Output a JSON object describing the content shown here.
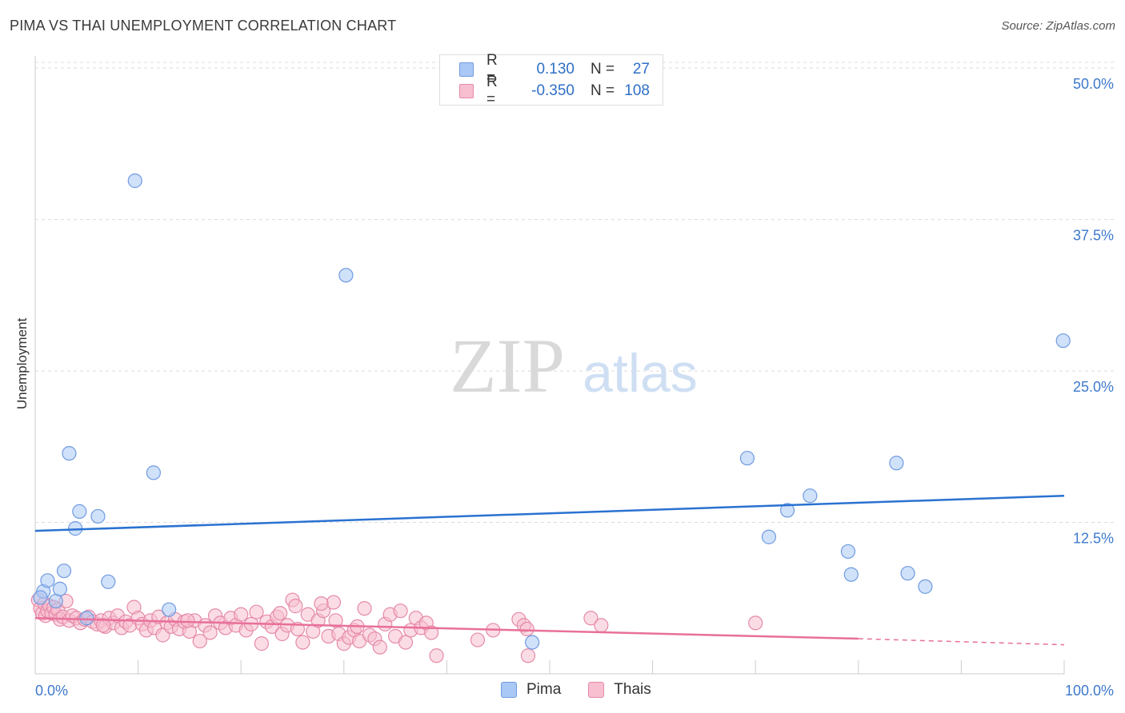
{
  "title": "PIMA VS THAI UNEMPLOYMENT CORRELATION CHART",
  "source": "Source: ZipAtlas.com",
  "watermark": {
    "zip": "ZIP",
    "atlas": "atlas"
  },
  "legend": {
    "rows": [
      {
        "r_label": "R =",
        "r_value": "0.130",
        "n_label": "N =",
        "n_value": "27",
        "color": "#aac8f5",
        "border": "#6f9be0"
      },
      {
        "r_label": "R =",
        "r_value": "-0.350",
        "n_label": "N =",
        "n_value": "108",
        "color": "#f7bfd0",
        "border": "#e58aa8"
      }
    ]
  },
  "bottom_legend": [
    {
      "name": "Pima",
      "color": "#aac8f5",
      "border": "#6f9be0"
    },
    {
      "name": "Thais",
      "color": "#f7bfd0",
      "border": "#e58aa8"
    }
  ],
  "chart_data": {
    "type": "scatter",
    "xlabel": "",
    "ylabel": "Unemployment",
    "xlim": [
      0,
      100
    ],
    "ylim": [
      0,
      51
    ],
    "x_tick_labels": [
      "0.0%",
      "100.0%"
    ],
    "y_ticks": [
      12.5,
      25.0,
      37.5,
      50.0
    ],
    "y_tick_labels": [
      "12.5%",
      "25.0%",
      "37.5%",
      "50.0%"
    ],
    "grid": true,
    "series": [
      {
        "name": "Pima",
        "color": "#aac8f5",
        "stroke": "#6f9be0",
        "line_color": "#2a72d1",
        "trend": {
          "x": [
            0,
            100
          ],
          "y": [
            11.8,
            14.7
          ]
        },
        "points": [
          {
            "x": 0.8,
            "y": 6.8
          },
          {
            "x": 1.2,
            "y": 7.7
          },
          {
            "x": 2.0,
            "y": 6.0
          },
          {
            "x": 2.4,
            "y": 7.0
          },
          {
            "x": 2.8,
            "y": 8.5
          },
          {
            "x": 3.3,
            "y": 18.2
          },
          {
            "x": 3.9,
            "y": 12.0
          },
          {
            "x": 4.3,
            "y": 13.4
          },
          {
            "x": 6.1,
            "y": 13.0
          },
          {
            "x": 7.1,
            "y": 7.6
          },
          {
            "x": 9.7,
            "y": 40.7
          },
          {
            "x": 11.5,
            "y": 16.6
          },
          {
            "x": 13.0,
            "y": 5.3
          },
          {
            "x": 30.2,
            "y": 32.9
          },
          {
            "x": 48.3,
            "y": 2.6
          },
          {
            "x": 69.2,
            "y": 17.8
          },
          {
            "x": 71.3,
            "y": 11.3
          },
          {
            "x": 73.1,
            "y": 13.5
          },
          {
            "x": 75.3,
            "y": 14.7
          },
          {
            "x": 79.0,
            "y": 10.1
          },
          {
            "x": 79.3,
            "y": 8.2
          },
          {
            "x": 83.7,
            "y": 17.4
          },
          {
            "x": 84.8,
            "y": 8.3
          },
          {
            "x": 86.5,
            "y": 7.2
          },
          {
            "x": 99.9,
            "y": 27.5
          },
          {
            "x": 0.5,
            "y": 6.3
          },
          {
            "x": 5.0,
            "y": 4.6
          }
        ]
      },
      {
        "name": "Thais",
        "color": "#f7bfd0",
        "stroke": "#e58aa8",
        "line_color": "#e8709a",
        "trend": {
          "x": [
            0,
            80,
            100
          ],
          "y": [
            4.6,
            2.9,
            2.4
          ]
        },
        "points": [
          {
            "x": 0.3,
            "y": 6.1
          },
          {
            "x": 0.5,
            "y": 5.4
          },
          {
            "x": 0.7,
            "y": 5.0
          },
          {
            "x": 0.9,
            "y": 5.8
          },
          {
            "x": 1.0,
            "y": 4.8
          },
          {
            "x": 1.2,
            "y": 5.2
          },
          {
            "x": 1.4,
            "y": 5.6
          },
          {
            "x": 1.6,
            "y": 5.0
          },
          {
            "x": 1.8,
            "y": 5.5
          },
          {
            "x": 2.0,
            "y": 4.9
          },
          {
            "x": 2.2,
            "y": 5.3
          },
          {
            "x": 2.4,
            "y": 4.5
          },
          {
            "x": 2.7,
            "y": 4.7
          },
          {
            "x": 3.0,
            "y": 6.0
          },
          {
            "x": 3.3,
            "y": 4.4
          },
          {
            "x": 3.6,
            "y": 4.8
          },
          {
            "x": 4.0,
            "y": 4.6
          },
          {
            "x": 4.4,
            "y": 4.2
          },
          {
            "x": 4.8,
            "y": 4.5
          },
          {
            "x": 5.2,
            "y": 4.7
          },
          {
            "x": 5.6,
            "y": 4.3
          },
          {
            "x": 6.0,
            "y": 4.1
          },
          {
            "x": 6.4,
            "y": 4.4
          },
          {
            "x": 6.8,
            "y": 3.9
          },
          {
            "x": 7.2,
            "y": 4.6
          },
          {
            "x": 7.6,
            "y": 4.2
          },
          {
            "x": 8.0,
            "y": 4.8
          },
          {
            "x": 8.4,
            "y": 3.8
          },
          {
            "x": 8.8,
            "y": 4.3
          },
          {
            "x": 9.2,
            "y": 4.0
          },
          {
            "x": 9.6,
            "y": 5.5
          },
          {
            "x": 10.0,
            "y": 4.6
          },
          {
            "x": 10.4,
            "y": 4.1
          },
          {
            "x": 10.8,
            "y": 3.6
          },
          {
            "x": 11.2,
            "y": 4.4
          },
          {
            "x": 11.6,
            "y": 3.8
          },
          {
            "x": 12.0,
            "y": 4.7
          },
          {
            "x": 12.4,
            "y": 3.2
          },
          {
            "x": 12.8,
            "y": 4.2
          },
          {
            "x": 13.2,
            "y": 3.9
          },
          {
            "x": 13.6,
            "y": 4.5
          },
          {
            "x": 14.0,
            "y": 3.7
          },
          {
            "x": 14.5,
            "y": 4.3
          },
          {
            "x": 15.0,
            "y": 3.5
          },
          {
            "x": 15.5,
            "y": 4.4
          },
          {
            "x": 16.0,
            "y": 2.7
          },
          {
            "x": 16.5,
            "y": 4.0
          },
          {
            "x": 17.0,
            "y": 3.4
          },
          {
            "x": 17.5,
            "y": 4.8
          },
          {
            "x": 18.0,
            "y": 4.2
          },
          {
            "x": 18.5,
            "y": 3.8
          },
          {
            "x": 19.0,
            "y": 4.6
          },
          {
            "x": 19.5,
            "y": 4.0
          },
          {
            "x": 20.0,
            "y": 4.9
          },
          {
            "x": 20.5,
            "y": 3.6
          },
          {
            "x": 21.0,
            "y": 4.1
          },
          {
            "x": 21.5,
            "y": 5.1
          },
          {
            "x": 22.0,
            "y": 2.5
          },
          {
            "x": 22.5,
            "y": 4.3
          },
          {
            "x": 23.0,
            "y": 3.9
          },
          {
            "x": 23.5,
            "y": 4.7
          },
          {
            "x": 24.0,
            "y": 3.3
          },
          {
            "x": 24.5,
            "y": 4.0
          },
          {
            "x": 25.0,
            "y": 6.1
          },
          {
            "x": 25.5,
            "y": 3.7
          },
          {
            "x": 26.0,
            "y": 2.6
          },
          {
            "x": 26.5,
            "y": 4.9
          },
          {
            "x": 27.0,
            "y": 3.5
          },
          {
            "x": 27.5,
            "y": 4.4
          },
          {
            "x": 28.0,
            "y": 5.2
          },
          {
            "x": 28.5,
            "y": 3.1
          },
          {
            "x": 29.0,
            "y": 5.9
          },
          {
            "x": 29.5,
            "y": 3.3
          },
          {
            "x": 30.0,
            "y": 2.5
          },
          {
            "x": 30.5,
            "y": 3.0
          },
          {
            "x": 31.0,
            "y": 3.6
          },
          {
            "x": 31.5,
            "y": 2.7
          },
          {
            "x": 32.0,
            "y": 5.4
          },
          {
            "x": 32.5,
            "y": 3.2
          },
          {
            "x": 33.0,
            "y": 2.9
          },
          {
            "x": 33.5,
            "y": 2.2
          },
          {
            "x": 34.0,
            "y": 4.1
          },
          {
            "x": 34.5,
            "y": 4.9
          },
          {
            "x": 35.0,
            "y": 3.1
          },
          {
            "x": 35.5,
            "y": 5.2
          },
          {
            "x": 36.0,
            "y": 2.6
          },
          {
            "x": 36.5,
            "y": 3.6
          },
          {
            "x": 37.0,
            "y": 4.6
          },
          {
            "x": 37.5,
            "y": 3.8
          },
          {
            "x": 38.0,
            "y": 4.2
          },
          {
            "x": 38.5,
            "y": 3.4
          },
          {
            "x": 39.0,
            "y": 1.5
          },
          {
            "x": 25.3,
            "y": 5.6
          },
          {
            "x": 27.8,
            "y": 5.8
          },
          {
            "x": 29.2,
            "y": 4.4
          },
          {
            "x": 31.3,
            "y": 3.9
          },
          {
            "x": 43.0,
            "y": 2.8
          },
          {
            "x": 44.5,
            "y": 3.6
          },
          {
            "x": 47.0,
            "y": 4.5
          },
          {
            "x": 47.5,
            "y": 4.0
          },
          {
            "x": 47.8,
            "y": 3.7
          },
          {
            "x": 47.9,
            "y": 1.5
          },
          {
            "x": 54.0,
            "y": 4.6
          },
          {
            "x": 55.0,
            "y": 4.0
          },
          {
            "x": 70.0,
            "y": 4.2
          },
          {
            "x": 23.8,
            "y": 5.0
          },
          {
            "x": 14.8,
            "y": 4.4
          },
          {
            "x": 6.6,
            "y": 4.0
          }
        ]
      }
    ]
  }
}
